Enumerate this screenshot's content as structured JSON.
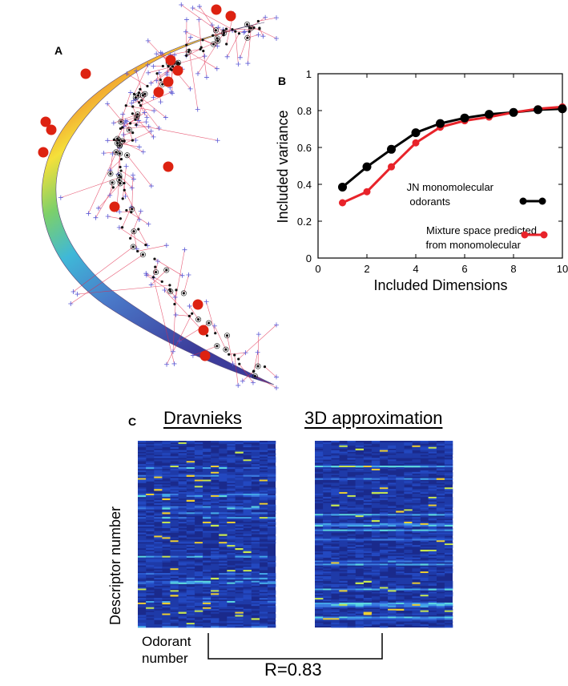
{
  "panels": {
    "a": {
      "label": "A"
    },
    "b": {
      "label": "B"
    },
    "c": {
      "label": "C",
      "left_heading": "Dravnieks",
      "right_heading": "3D approximation",
      "y_axis_label": "Descriptor number",
      "x_axis_label_line1": "Odorant",
      "x_axis_label_line2": "number",
      "correlation": "R=0.83"
    }
  },
  "colors": {
    "black_series": "#000000",
    "red_series": "#e8232a",
    "marker_red": "#dd2211",
    "heatmap_bg": "#1a2a8c"
  },
  "chart_data": {
    "type": "line",
    "xlabel": "Included Dimensions",
    "ylabel": "Included variance",
    "xlim": [
      0,
      10
    ],
    "ylim": [
      0,
      1
    ],
    "xticks": [
      "0",
      "2",
      "4",
      "6",
      "8",
      "10"
    ],
    "yticks": [
      "0",
      "0.2",
      "0.4",
      "0.6",
      "0.8",
      "1"
    ],
    "x": [
      1,
      2,
      3,
      4,
      5,
      6,
      7,
      8,
      9,
      10
    ],
    "series": [
      {
        "name": "JN monomolecular odorants",
        "legend_line1": "JN monomolecular",
        "legend_line2": "odorants",
        "color": "#000000",
        "values": [
          0.385,
          0.495,
          0.59,
          0.68,
          0.73,
          0.76,
          0.78,
          0.79,
          0.805,
          0.81
        ]
      },
      {
        "name": "Mixture space predicted from monomolecular",
        "legend_line1": "Mixture space predicted",
        "legend_line2": "from monomolecular",
        "color": "#e8232a",
        "values": [
          0.3,
          0.36,
          0.495,
          0.625,
          0.71,
          0.745,
          0.765,
          0.79,
          0.81,
          0.82
        ]
      }
    ]
  }
}
